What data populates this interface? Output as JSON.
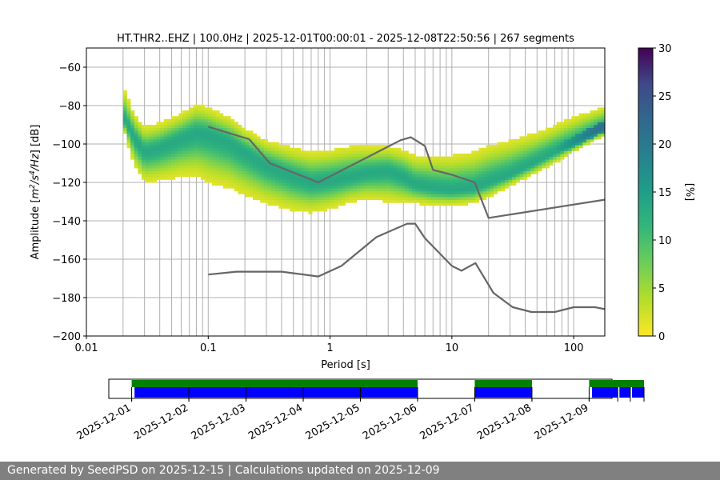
{
  "chart_data": [
    {
      "type": "heatmap",
      "title": "HT.THR2..EHZ | 100.0Hz | 2025-12-01T00:00:01 - 2025-12-08T22:50:56 | 267 segments",
      "xlabel": "Period [s]",
      "ylabel_parts": [
        "Amplitude [",
        "m",
        "2",
        "/s",
        "4",
        "/Hz",
        "] [dB]"
      ],
      "x_scale": "log",
      "xlim": [
        0.01,
        180
      ],
      "ylim": [
        -200,
        -50
      ],
      "x_ticks": [
        {
          "value": 0.01,
          "label": "0.01"
        },
        {
          "value": 0.1,
          "label": "0.1"
        },
        {
          "value": 1,
          "label": "1"
        },
        {
          "value": 10,
          "label": "10"
        },
        {
          "value": 100,
          "label": "100"
        }
      ],
      "y_ticks": [
        {
          "value": -60,
          "label": "−60"
        },
        {
          "value": -80,
          "label": "−80"
        },
        {
          "value": -100,
          "label": "−100"
        },
        {
          "value": -120,
          "label": "−120"
        },
        {
          "value": -140,
          "label": "−140"
        },
        {
          "value": -160,
          "label": "−160"
        },
        {
          "value": -180,
          "label": "−180"
        },
        {
          "value": -200,
          "label": "−200"
        }
      ],
      "grid": true,
      "colormap": "viridis_r",
      "colorbar": {
        "label": "[%]",
        "range": [
          0,
          30
        ],
        "ticks": [
          {
            "value": 0,
            "label": "0"
          },
          {
            "value": 5,
            "label": "5"
          },
          {
            "value": 10,
            "label": "10"
          },
          {
            "value": 15,
            "label": "15"
          },
          {
            "value": 20,
            "label": "20"
          },
          {
            "value": 25,
            "label": "25"
          },
          {
            "value": 30,
            "label": "30"
          }
        ]
      },
      "psd_envelope": {
        "period_range": [
          0.02,
          180
        ],
        "mode": [
          [
            0.02,
            -86
          ],
          [
            0.025,
            -97
          ],
          [
            0.03,
            -104
          ],
          [
            0.04,
            -102
          ],
          [
            0.06,
            -97
          ],
          [
            0.08,
            -94
          ],
          [
            0.1,
            -95
          ],
          [
            0.15,
            -99
          ],
          [
            0.2,
            -104
          ],
          [
            0.3,
            -111
          ],
          [
            0.5,
            -117
          ],
          [
            0.7,
            -120
          ],
          [
            1,
            -119
          ],
          [
            1.5,
            -117
          ],
          [
            2,
            -115
          ],
          [
            3,
            -114
          ],
          [
            4,
            -117
          ],
          [
            5,
            -121
          ],
          [
            7,
            -123
          ],
          [
            10,
            -124
          ],
          [
            15,
            -123
          ],
          [
            20,
            -120
          ],
          [
            30,
            -116
          ],
          [
            50,
            -109
          ],
          [
            70,
            -104
          ],
          [
            100,
            -99
          ],
          [
            150,
            -93
          ],
          [
            180,
            -91
          ]
        ],
        "top": [
          [
            0.02,
            -70
          ],
          [
            0.025,
            -85
          ],
          [
            0.03,
            -91
          ],
          [
            0.04,
            -89
          ],
          [
            0.06,
            -84
          ],
          [
            0.08,
            -79
          ],
          [
            0.1,
            -81
          ],
          [
            0.15,
            -86
          ],
          [
            0.2,
            -92
          ],
          [
            0.3,
            -98
          ],
          [
            0.5,
            -102
          ],
          [
            0.7,
            -104
          ],
          [
            1,
            -103
          ],
          [
            1.5,
            -101
          ],
          [
            2,
            -101
          ],
          [
            3,
            -101
          ],
          [
            4,
            -103
          ],
          [
            5,
            -106
          ],
          [
            7,
            -106
          ],
          [
            10,
            -106
          ],
          [
            15,
            -104
          ],
          [
            20,
            -101
          ],
          [
            30,
            -98
          ],
          [
            50,
            -94
          ],
          [
            70,
            -90
          ],
          [
            100,
            -86
          ],
          [
            150,
            -82
          ],
          [
            180,
            -80
          ]
        ],
        "bottom": [
          [
            0.02,
            -92
          ],
          [
            0.025,
            -112
          ],
          [
            0.03,
            -120
          ],
          [
            0.04,
            -119
          ],
          [
            0.06,
            -117
          ],
          [
            0.08,
            -117
          ],
          [
            0.1,
            -120
          ],
          [
            0.15,
            -123
          ],
          [
            0.2,
            -127
          ],
          [
            0.3,
            -131
          ],
          [
            0.5,
            -135
          ],
          [
            0.7,
            -136
          ],
          [
            1,
            -134
          ],
          [
            1.5,
            -130
          ],
          [
            2,
            -129
          ],
          [
            3,
            -130
          ],
          [
            4,
            -131
          ],
          [
            5,
            -131
          ],
          [
            7,
            -132
          ],
          [
            10,
            -132
          ],
          [
            15,
            -131
          ],
          [
            20,
            -128
          ],
          [
            30,
            -122
          ],
          [
            50,
            -115
          ],
          [
            70,
            -110
          ],
          [
            100,
            -104
          ],
          [
            150,
            -98
          ],
          [
            180,
            -96
          ]
        ]
      },
      "reference_curves": [
        {
          "color": "#666666",
          "points": [
            [
              0.1,
              -91
            ],
            [
              0.217,
              -97.5
            ],
            [
              0.32,
              -110
            ],
            [
              0.8,
              -120
            ],
            [
              3.8,
              -98
            ],
            [
              4.6,
              -96.5
            ],
            [
              6,
              -101
            ],
            [
              7,
              -113.5
            ],
            [
              10,
              -116
            ],
            [
              15.4,
              -120
            ],
            [
              20,
              -138.5
            ],
            [
              180,
              -129
            ]
          ]
        },
        {
          "color": "#666666",
          "points": [
            [
              0.1,
              -168
            ],
            [
              0.17,
              -166.5
            ],
            [
              0.4,
              -166.5
            ],
            [
              0.8,
              -169
            ],
            [
              1.24,
              -163.5
            ],
            [
              2.4,
              -148.5
            ],
            [
              4.3,
              -141.5
            ],
            [
              5,
              -141.5
            ],
            [
              6,
              -149
            ],
            [
              10,
              -163.5
            ],
            [
              12,
              -166
            ],
            [
              15.6,
              -162
            ],
            [
              21.9,
              -177.5
            ],
            [
              31.6,
              -185
            ],
            [
              45,
              -187.5
            ],
            [
              70,
              -187.5
            ],
            [
              100,
              -185
            ],
            [
              150,
              -185
            ],
            [
              180,
              -186
            ]
          ]
        }
      ]
    },
    {
      "type": "timeline",
      "x_ticks": [
        "2025-12-01",
        "2025-12-02",
        "2025-12-03",
        "2025-12-04",
        "2025-12-05",
        "2025-12-06",
        "2025-12-07",
        "2025-12-08",
        "2025-12-09"
      ],
      "xlim": [
        -0.4,
        8.4
      ],
      "colors": {
        "availability": "#008000",
        "psd": "#0000ff"
      },
      "availability": [
        [
          0,
          5
        ],
        [
          6,
          7
        ],
        [
          8,
          8.96
        ]
      ],
      "psd_segments": [
        [
          0.05,
          5
        ],
        [
          6,
          7
        ],
        [
          8.05,
          8.5
        ],
        [
          8.53,
          8.72
        ],
        [
          8.75,
          8.96
        ]
      ],
      "segment_ticks": [
        0,
        1,
        2,
        3,
        4,
        5,
        6,
        7,
        8,
        8.5,
        8.72,
        8.96
      ]
    }
  ],
  "footer": {
    "text": "Generated by SeedPSD on 2025-12-15 | Calculations updated on 2025-12-09"
  }
}
